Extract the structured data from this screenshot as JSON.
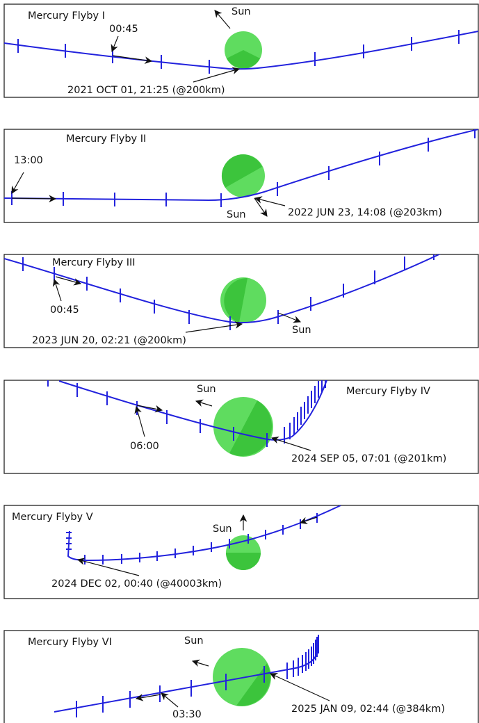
{
  "colors": {
    "trajectory": "#2222dd",
    "planet_light": "#5fdc5f",
    "planet_dark": "#3cc43c",
    "frame": "#222222",
    "annotation": "#111111"
  },
  "flybys": [
    {
      "title": "Mercury Flyby I",
      "sun_label": "Sun",
      "time_label": "00:45",
      "closest_approach": "2021 OCT 01, 21:25 (@200km)"
    },
    {
      "title": "Mercury Flyby II",
      "sun_label": "Sun",
      "time_label": "13:00",
      "closest_approach": "2022 JUN 23, 14:08 (@203km)"
    },
    {
      "title": "Mercury Flyby III",
      "sun_label": "Sun",
      "time_label": "00:45",
      "closest_approach": "2023 JUN 20, 02:21 (@200km)"
    },
    {
      "title": "Mercury Flyby IV",
      "sun_label": "Sun",
      "time_label": "06:00",
      "closest_approach": "2024 SEP 05, 07:01 (@201km)"
    },
    {
      "title": "Mercury Flyby V",
      "sun_label": "Sun",
      "time_label": "",
      "closest_approach": "2024 DEC 02, 00:40 (@40003km)"
    },
    {
      "title": "Mercury Flyby VI",
      "sun_label": "Sun",
      "time_label": "03:30",
      "closest_approach": "2025 JAN 09, 02:44 (@384km)"
    }
  ]
}
